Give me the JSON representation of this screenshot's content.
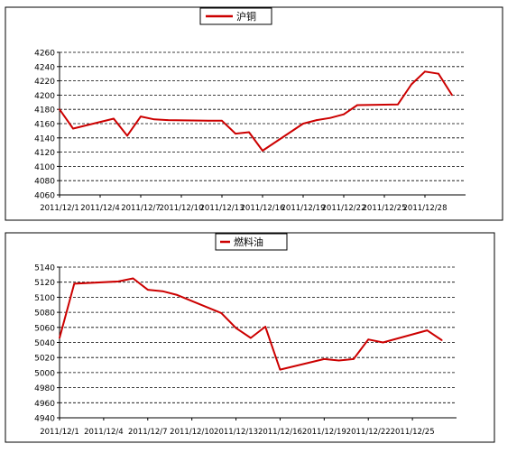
{
  "chart_data": [
    {
      "type": "line",
      "legend": {
        "position": "top-center"
      },
      "series": [
        {
          "name": "沪铜",
          "color": "#cc0000",
          "x": [
            "2011/12/1",
            "2011/12/2",
            "2011/12/5",
            "2011/12/6",
            "2011/12/7",
            "2011/12/8",
            "2011/12/9",
            "2011/12/12",
            "2011/12/13",
            "2011/12/14",
            "2011/12/15",
            "2011/12/16",
            "2011/12/19",
            "2011/12/20",
            "2011/12/21",
            "2011/12/22",
            "2011/12/23",
            "2011/12/26",
            "2011/12/27",
            "2011/12/28",
            "2011/12/29",
            "2011/12/30"
          ],
          "values": [
            4180,
            4153,
            4167,
            4143,
            4170,
            4166,
            4165,
            4164,
            4164,
            4146,
            4148,
            4122,
            4160,
            4165,
            4168,
            4173,
            4186,
            4187,
            4215,
            4233,
            4230,
            4200
          ]
        }
      ],
      "categories": [
        "2011/12/1",
        "2011/12/4",
        "2011/12/7",
        "2011/12/10",
        "2011/12/13",
        "2011/12/16",
        "2011/12/19",
        "2011/12/22",
        "2011/12/25",
        "2011/12/28"
      ],
      "x_range": [
        "2011/12/1",
        "2011/12/31"
      ],
      "ylim": [
        4060,
        4260
      ],
      "yticks": [
        "4060",
        "4080",
        "4100",
        "4120",
        "4140",
        "4160",
        "4180",
        "4200",
        "4220",
        "4240",
        "4260"
      ],
      "grid": true,
      "grid_style": "dashed horizontal"
    },
    {
      "type": "line",
      "legend": {
        "position": "top-center"
      },
      "series": [
        {
          "name": "燃料油",
          "color": "#cc0000",
          "x": [
            "2011/12/1",
            "2011/12/2",
            "2011/12/5",
            "2011/12/6",
            "2011/12/7",
            "2011/12/8",
            "2011/12/9",
            "2011/12/12",
            "2011/12/13",
            "2011/12/14",
            "2011/12/15",
            "2011/12/16",
            "2011/12/19",
            "2011/12/20",
            "2011/12/21",
            "2011/12/22",
            "2011/12/23",
            "2011/12/26",
            "2011/12/27"
          ],
          "values": [
            5046,
            5118,
            5121,
            5125,
            5110,
            5108,
            5103,
            5079,
            5059,
            5046,
            5061,
            5004,
            5018,
            5016,
            5018,
            5044,
            5040,
            5056,
            5043
          ]
        }
      ],
      "categories": [
        "2011/12/1",
        "2011/12/4",
        "2011/12/7",
        "2011/12/10",
        "2011/12/13",
        "2011/12/16",
        "2011/12/19",
        "2011/12/22",
        "2011/12/25"
      ],
      "x_range": [
        "2011/12/1",
        "2011/12/28"
      ],
      "ylim": [
        4940,
        5140
      ],
      "yticks": [
        "4940",
        "4960",
        "4980",
        "5000",
        "5020",
        "5040",
        "5060",
        "5080",
        "5100",
        "5120",
        "5140"
      ],
      "grid": true,
      "grid_style": "dashed horizontal"
    }
  ]
}
